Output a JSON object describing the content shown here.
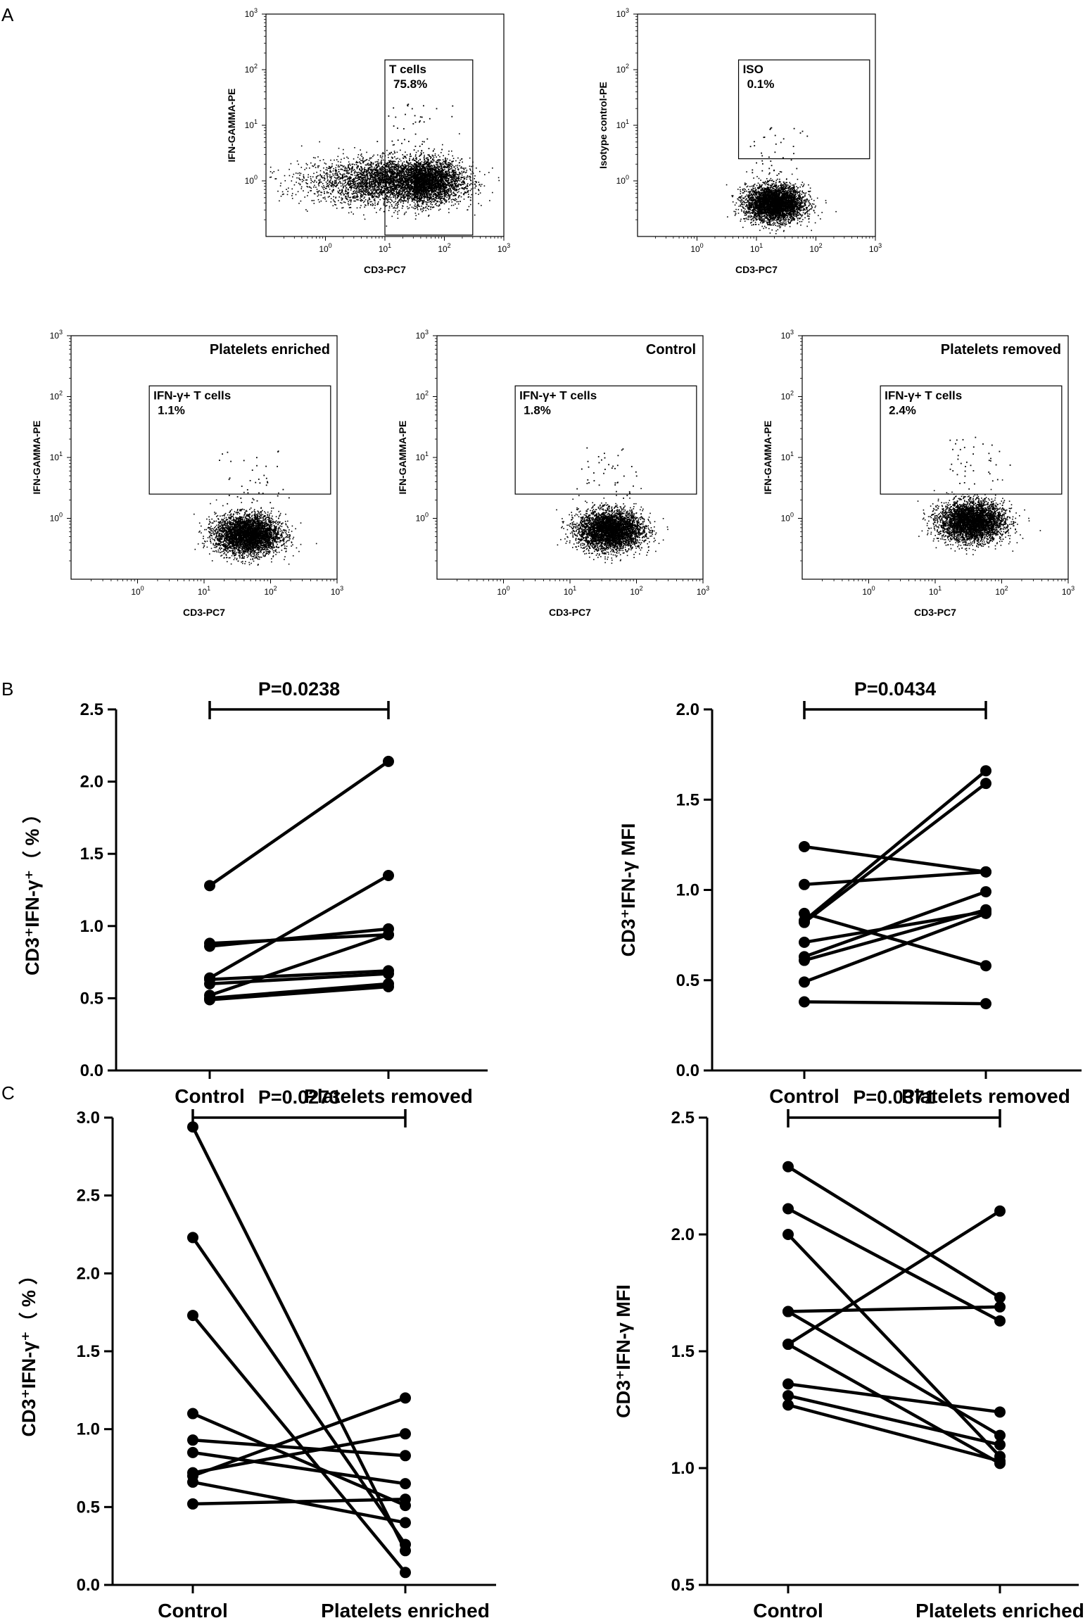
{
  "panel_letters": [
    "A",
    "B",
    "C"
  ],
  "chart_data": [
    {
      "type": "scatter",
      "subtype": "flow_cytometry_dot_plot",
      "title": "",
      "xlabel": "CD3-PC7",
      "ylabel": "IFN-GAMMA-PE",
      "x_scale": "log",
      "y_scale": "log",
      "xlim": [
        0.1,
        1000
      ],
      "ylim": [
        0.1,
        1000
      ],
      "x_ticks": [
        "10^0",
        "10^1",
        "10^2",
        "10^3"
      ],
      "y_ticks": [
        "10^0",
        "10^1",
        "10^2",
        "10^3"
      ],
      "corner_label": "",
      "gate": {
        "name": "T cells",
        "percent": "75.8%",
        "x_range": [
          10,
          300
        ],
        "y_range": [
          0.05,
          150
        ]
      },
      "population": {
        "x_center": 30,
        "y_center": 1.0,
        "shape": "broad, tails to left"
      }
    },
    {
      "type": "scatter",
      "subtype": "flow_cytometry_dot_plot",
      "title": "",
      "xlabel": "CD3-PC7",
      "ylabel": "Isotype control-PE",
      "x_scale": "log",
      "y_scale": "log",
      "xlim": [
        0.1,
        1000
      ],
      "ylim": [
        0.1,
        1000
      ],
      "x_ticks": [
        "10^0",
        "10^1",
        "10^2",
        "10^3"
      ],
      "y_ticks": [
        "10^0",
        "10^1",
        "10^2",
        "10^3"
      ],
      "corner_label": "",
      "gate": {
        "name": "ISO",
        "percent": "0.1%",
        "x_range": [
          5,
          800
        ],
        "y_range": [
          2.5,
          150
        ]
      },
      "population": {
        "x_center": 20,
        "y_center": 0.4,
        "shape": "compact"
      }
    },
    {
      "type": "scatter",
      "subtype": "flow_cytometry_dot_plot",
      "title": "",
      "xlabel": "CD3-PC7",
      "ylabel": "IFN-GAMMA-PE",
      "x_scale": "log",
      "y_scale": "log",
      "xlim": [
        0.1,
        1000
      ],
      "ylim": [
        0.1,
        1000
      ],
      "x_ticks": [
        "10^0",
        "10^1",
        "10^2",
        "10^3"
      ],
      "y_ticks": [
        "10^0",
        "10^1",
        "10^2",
        "10^3"
      ],
      "corner_label": "Platelets enriched",
      "gate": {
        "name": "IFN-γ+ T cells",
        "percent": "1.1%",
        "x_range": [
          1.5,
          800
        ],
        "y_range": [
          2.5,
          150
        ]
      },
      "population": {
        "x_center": 45,
        "y_center": 0.55,
        "shape": "compact"
      }
    },
    {
      "type": "scatter",
      "subtype": "flow_cytometry_dot_plot",
      "title": "",
      "xlabel": "CD3-PC7",
      "ylabel": "IFN-GAMMA-PE",
      "x_scale": "log",
      "y_scale": "log",
      "xlim": [
        0.1,
        1000
      ],
      "ylim": [
        0.1,
        1000
      ],
      "x_ticks": [
        "10^0",
        "10^1",
        "10^2",
        "10^3"
      ],
      "y_ticks": [
        "10^0",
        "10^1",
        "10^2",
        "10^3"
      ],
      "corner_label": "Control",
      "gate": {
        "name": "IFN-γ+ T cells",
        "percent": "1.8%",
        "x_range": [
          1.5,
          800
        ],
        "y_range": [
          2.5,
          150
        ]
      },
      "population": {
        "x_center": 40,
        "y_center": 0.65,
        "shape": "compact"
      }
    },
    {
      "type": "scatter",
      "subtype": "flow_cytometry_dot_plot",
      "title": "",
      "xlabel": "CD3-PC7",
      "ylabel": "IFN-GAMMA-PE",
      "x_scale": "log",
      "y_scale": "log",
      "xlim": [
        0.1,
        1000
      ],
      "ylim": [
        0.1,
        1000
      ],
      "x_ticks": [
        "10^0",
        "10^1",
        "10^2",
        "10^3"
      ],
      "y_ticks": [
        "10^0",
        "10^1",
        "10^2",
        "10^3"
      ],
      "corner_label": "Platelets removed",
      "gate": {
        "name": "IFN-γ+ T cells",
        "percent": "2.4%",
        "x_range": [
          1.5,
          800
        ],
        "y_range": [
          2.5,
          150
        ]
      },
      "population": {
        "x_center": 35,
        "y_center": 0.9,
        "shape": "compact"
      }
    },
    {
      "type": "line",
      "subtype": "paired_before_after",
      "ylabel": "CD3⁺IFN-γ⁺（ % ）",
      "categories": [
        "Control",
        "Platelets removed"
      ],
      "ylim": [
        0,
        2.5
      ],
      "y_ticks": [
        0.0,
        0.5,
        1.0,
        1.5,
        2.0,
        2.5
      ],
      "p_value": "P=0.0238",
      "pairs": [
        [
          1.28,
          2.14
        ],
        [
          0.88,
          0.94
        ],
        [
          0.86,
          0.98
        ],
        [
          0.64,
          1.35
        ],
        [
          0.63,
          0.69
        ],
        [
          0.6,
          0.67
        ],
        [
          0.52,
          0.94
        ],
        [
          0.49,
          0.58
        ],
        [
          0.5,
          0.6
        ]
      ]
    },
    {
      "type": "line",
      "subtype": "paired_before_after",
      "ylabel": "CD3⁺IFN-γ MFI",
      "categories": [
        "Control",
        "Platelets removed"
      ],
      "ylim": [
        0,
        2.0
      ],
      "y_ticks": [
        0.0,
        0.5,
        1.0,
        1.5,
        2.0
      ],
      "p_value": "P=0.0434",
      "pairs": [
        [
          1.24,
          1.1
        ],
        [
          1.03,
          1.1
        ],
        [
          0.87,
          0.58
        ],
        [
          0.83,
          1.66
        ],
        [
          0.82,
          1.59
        ],
        [
          0.71,
          0.88
        ],
        [
          0.63,
          0.99
        ],
        [
          0.61,
          0.89
        ],
        [
          0.49,
          0.87
        ],
        [
          0.38,
          0.37
        ]
      ]
    },
    {
      "type": "line",
      "subtype": "paired_before_after",
      "ylabel": "CD3⁺IFN-γ⁺（ % ）",
      "categories": [
        "Control",
        "Platelets enriched"
      ],
      "ylim": [
        0,
        3.0
      ],
      "y_ticks": [
        0.0,
        0.5,
        1.0,
        1.5,
        2.0,
        2.5,
        3.0
      ],
      "p_value": "P=0.0273",
      "pairs": [
        [
          2.94,
          0.22
        ],
        [
          2.23,
          0.26
        ],
        [
          1.73,
          0.08
        ],
        [
          1.1,
          0.51
        ],
        [
          0.93,
          0.83
        ],
        [
          0.85,
          0.65
        ],
        [
          0.72,
          0.97
        ],
        [
          0.7,
          1.2
        ],
        [
          0.66,
          0.4
        ],
        [
          0.52,
          0.55
        ]
      ]
    },
    {
      "type": "line",
      "subtype": "paired_before_after",
      "ylabel": "CD3⁺IFN-γ MFI",
      "categories": [
        "Control",
        "Platelets enriched"
      ],
      "ylim": [
        0.5,
        2.5
      ],
      "y_ticks": [
        0.5,
        1.0,
        1.5,
        2.0,
        2.5
      ],
      "p_value": "P=0.0371",
      "pairs": [
        [
          2.29,
          1.73
        ],
        [
          2.11,
          1.63
        ],
        [
          2.0,
          1.05
        ],
        [
          1.67,
          1.69
        ],
        [
          1.67,
          1.14
        ],
        [
          1.53,
          2.1
        ],
        [
          1.53,
          1.02
        ],
        [
          1.36,
          1.24
        ],
        [
          1.31,
          1.1
        ],
        [
          1.27,
          1.03
        ]
      ]
    }
  ]
}
